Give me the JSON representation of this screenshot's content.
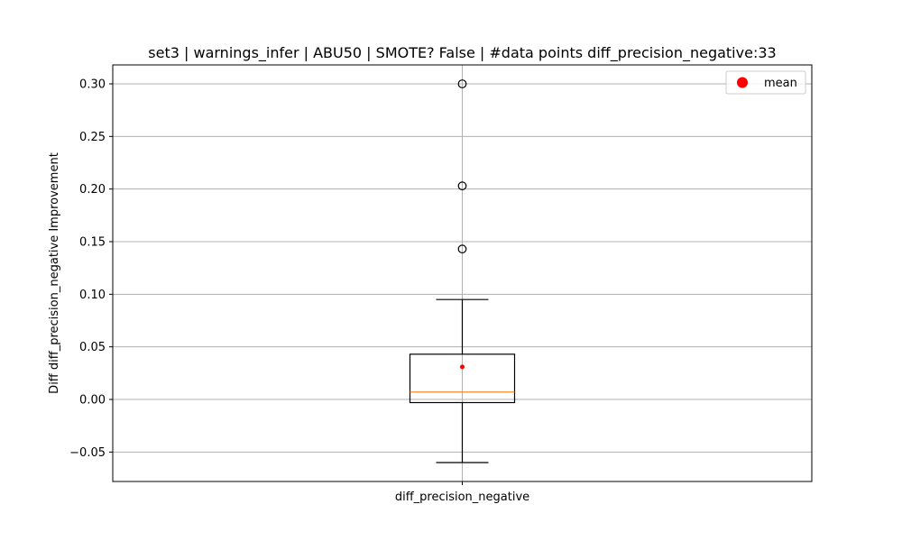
{
  "chart_data": {
    "type": "box",
    "title": "set3 | warnings_infer | ABU50 | SMOTE? False | #data points diff_precision_negative:33",
    "xlabel": "",
    "ylabel": "Diff diff_precision_negative Improvement",
    "categories": [
      "diff_precision_negative"
    ],
    "ylim": [
      -0.078,
      0.318
    ],
    "yticks": [
      -0.05,
      0.0,
      0.05,
      0.1,
      0.15,
      0.2,
      0.25,
      0.3
    ],
    "ytick_labels": [
      "−0.05",
      "0.00",
      "0.05",
      "0.10",
      "0.15",
      "0.20",
      "0.25",
      "0.30"
    ],
    "grid": true,
    "legend": {
      "position": "top-right",
      "entries": [
        {
          "label": "mean",
          "color": "#ff0000",
          "marker": "circle"
        }
      ]
    },
    "boxes": [
      {
        "name": "diff_precision_negative",
        "whisker_low": -0.06,
        "q1": -0.003,
        "median": 0.007,
        "q3": 0.043,
        "whisker_high": 0.095,
        "mean": 0.031,
        "outliers": [
          0.143,
          0.203,
          0.3
        ]
      }
    ],
    "colors": {
      "box": "#000000",
      "median": "#ff7f0e",
      "mean": "#ff0000",
      "grid": "#b0b0b0"
    }
  }
}
